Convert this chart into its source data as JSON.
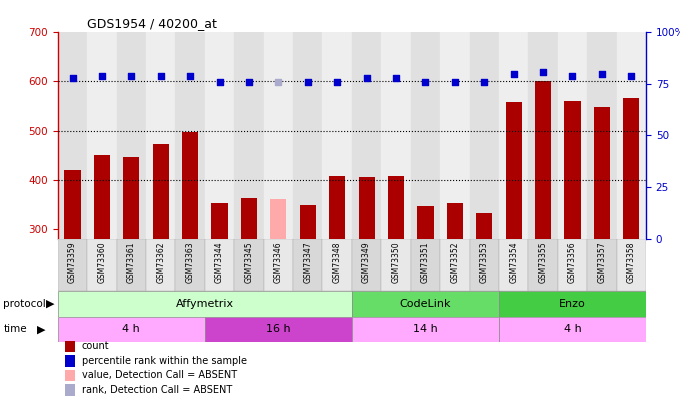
{
  "title": "GDS1954 / 40200_at",
  "samples": [
    "GSM73359",
    "GSM73360",
    "GSM73361",
    "GSM73362",
    "GSM73363",
    "GSM73344",
    "GSM73345",
    "GSM73346",
    "GSM73347",
    "GSM73348",
    "GSM73349",
    "GSM73350",
    "GSM73351",
    "GSM73352",
    "GSM73353",
    "GSM73354",
    "GSM73355",
    "GSM73356",
    "GSM73357",
    "GSM73358"
  ],
  "count_values": [
    420,
    450,
    447,
    472,
    498,
    353,
    362,
    360,
    349,
    408,
    405,
    408,
    347,
    353,
    333,
    558,
    601,
    560,
    547,
    567
  ],
  "count_absent": [
    false,
    false,
    false,
    false,
    false,
    false,
    false,
    true,
    false,
    false,
    false,
    false,
    false,
    false,
    false,
    false,
    false,
    false,
    false,
    false
  ],
  "rank_pct": [
    78,
    79,
    79,
    79,
    79,
    76,
    76,
    76,
    76,
    76,
    78,
    78,
    76,
    76,
    76,
    80,
    81,
    79,
    80,
    79
  ],
  "rank_absent": [
    false,
    false,
    false,
    false,
    false,
    false,
    false,
    true,
    false,
    false,
    false,
    false,
    false,
    false,
    false,
    false,
    false,
    false,
    false,
    false
  ],
  "ylim_left": [
    280,
    700
  ],
  "ylim_right": [
    0,
    100
  ],
  "yticks_left": [
    300,
    400,
    500,
    600,
    700
  ],
  "yticks_right": [
    0,
    25,
    50,
    75,
    100
  ],
  "grid_values": [
    400,
    500,
    600
  ],
  "bar_color": "#aa0000",
  "bar_absent_color": "#ffaaaa",
  "rank_color": "#0000cc",
  "rank_absent_color": "#aaaacc",
  "bg_color": "#d8d8d8",
  "protocol_groups": [
    {
      "label": "Affymetrix",
      "start": 0,
      "end": 10,
      "color": "#ccffcc"
    },
    {
      "label": "CodeLink",
      "start": 10,
      "end": 15,
      "color": "#66dd66"
    },
    {
      "label": "Enzo",
      "start": 15,
      "end": 20,
      "color": "#44cc44"
    }
  ],
  "time_groups": [
    {
      "label": "4 h",
      "start": 0,
      "end": 5,
      "color": "#ffaaff"
    },
    {
      "label": "16 h",
      "start": 5,
      "end": 10,
      "color": "#cc44cc"
    },
    {
      "label": "14 h",
      "start": 10,
      "end": 15,
      "color": "#ffaaff"
    },
    {
      "label": "4 h",
      "start": 15,
      "end": 20,
      "color": "#ffaaff"
    }
  ],
  "legend_items": [
    {
      "label": "count",
      "color": "#aa0000"
    },
    {
      "label": "percentile rank within the sample",
      "color": "#0000cc"
    },
    {
      "label": "value, Detection Call = ABSENT",
      "color": "#ffaaaa"
    },
    {
      "label": "rank, Detection Call = ABSENT",
      "color": "#aaaacc"
    }
  ]
}
